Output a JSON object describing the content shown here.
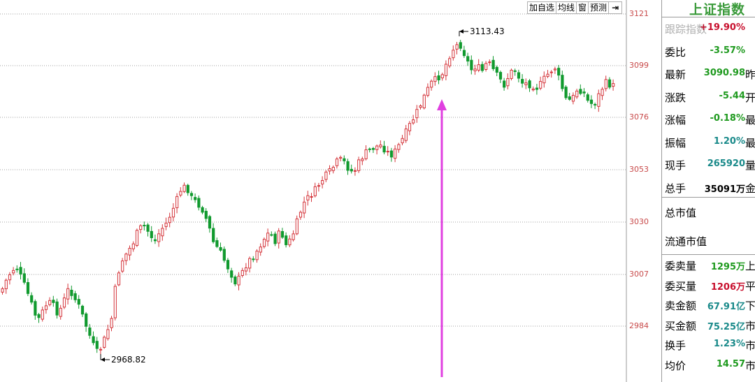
{
  "toolbar": {
    "add_watchlist": "加自选",
    "avg_line": "均线",
    "window": "窗",
    "forecast": "预测",
    "collapse": "⇥"
  },
  "axis": {
    "ticks": [
      "3121",
      "3099",
      "3076",
      "3053",
      "3030",
      "3007",
      "2984"
    ]
  },
  "chart_data": {
    "type": "candlestick",
    "ylim": [
      2968.82,
      3121
    ],
    "high_label": "3113.43",
    "low_label": "2968.82",
    "grid": true
  },
  "panel": {
    "title": "上证指数",
    "rows": [
      {
        "label": "跟踪指数",
        "value": "+19.90%",
        "cut": "",
        "color": "red"
      },
      {
        "label": "委比",
        "value": "-3.57%",
        "cut": "",
        "color": "green"
      },
      {
        "label": "最新",
        "value": "3090.98",
        "cut": "昨",
        "color": "green"
      },
      {
        "label": "涨跌",
        "value": "-5.44",
        "cut": "开",
        "color": "green"
      },
      {
        "label": "涨幅",
        "value": "-0.18%",
        "cut": "最",
        "color": "green"
      },
      {
        "label": "振幅",
        "value": "1.20%",
        "cut": "最",
        "color": "teal"
      },
      {
        "label": "现手",
        "value": "265920",
        "cut": "量",
        "color": "teal"
      },
      {
        "label": "总手",
        "value": "35091万",
        "cut": "金",
        "color": "blk"
      }
    ],
    "total_mcap": "总市值",
    "float_mcap": "流通市值",
    "rows2": [
      {
        "label": "委卖量",
        "value": "1295万",
        "cut": "上",
        "color": "green"
      },
      {
        "label": "委买量",
        "value": "1206万",
        "cut": "平",
        "color": "red"
      },
      {
        "label": "卖金额",
        "value": "67.91亿",
        "cut": "下",
        "color": "teal"
      },
      {
        "label": "买金额",
        "value": "75.25亿",
        "cut": "市",
        "color": "teal"
      },
      {
        "label": "换手",
        "value": "1.23%",
        "cut": "市",
        "color": "teal"
      },
      {
        "label": "均价",
        "value": "14.57",
        "cut": "市",
        "color": "green"
      }
    ]
  }
}
